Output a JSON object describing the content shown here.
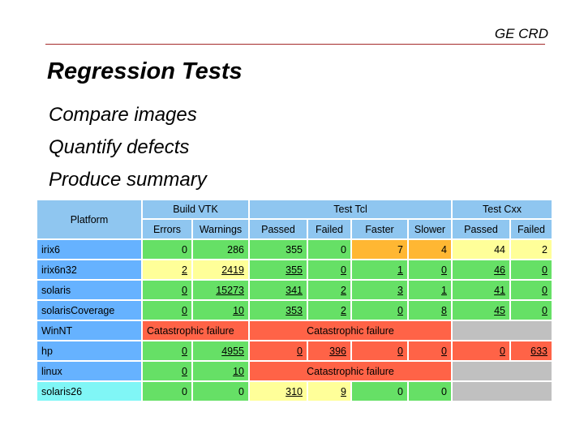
{
  "header": {
    "org": "GE CRD"
  },
  "title": "Regression Tests",
  "bullets": [
    "Compare images",
    "Quantify defects",
    "Produce summary"
  ],
  "table": {
    "platform_header": "Platform",
    "group_headers": [
      "Build VTK",
      "Test Tcl",
      "Test Cxx"
    ],
    "sub_headers": [
      "Errors",
      "Warnings",
      "Passed",
      "Failed",
      "Faster",
      "Slower",
      "Passed",
      "Failed"
    ],
    "rows": [
      {
        "platform": "irix6",
        "errors": "0",
        "warnings": "286",
        "tcl_passed": "355",
        "tcl_failed": "0",
        "faster": "7",
        "slower": "4",
        "cxx_passed": "44",
        "cxx_failed": "2"
      },
      {
        "platform": "irix6n32",
        "errors": "2",
        "warnings": "2419",
        "tcl_passed": "355",
        "tcl_failed": "0",
        "faster": "1",
        "slower": "0",
        "cxx_passed": "46",
        "cxx_failed": "0"
      },
      {
        "platform": "solaris",
        "errors": "0",
        "warnings": "15273",
        "tcl_passed": "341",
        "tcl_failed": "2",
        "faster": "3",
        "slower": "1",
        "cxx_passed": "41",
        "cxx_failed": "0"
      },
      {
        "platform": "solarisCoverage",
        "errors": "0",
        "warnings": "10",
        "tcl_passed": "353",
        "tcl_failed": "2",
        "faster": "0",
        "slower": "8",
        "cxx_passed": "45",
        "cxx_failed": "0"
      },
      {
        "platform": "WinNT",
        "build_message": "Catastrophic failure",
        "test_message": "Catastrophic failure"
      },
      {
        "platform": "hp",
        "errors": "0",
        "warnings": "4955",
        "tcl_passed": "0",
        "tcl_failed": "396",
        "faster": "0",
        "slower": "0",
        "cxx_passed": "0",
        "cxx_failed": "633"
      },
      {
        "platform": "linux",
        "errors": "0",
        "warnings": "10",
        "test_message": "Catastrophic failure"
      },
      {
        "platform": "solaris26",
        "errors": "0",
        "warnings": "0",
        "tcl_passed": "310",
        "tcl_failed": "9",
        "faster": "0",
        "slower": "0"
      }
    ]
  },
  "colors": {
    "header_blue": "#8fc6f0",
    "platform_blue": "#66b2ff",
    "cyan": "#80f6f6",
    "green": "#66e066",
    "yellow": "#ffff99",
    "orange": "#ffb733",
    "red": "#ff6347",
    "gray": "#c0c0c0",
    "rule": "#a52a2a"
  }
}
